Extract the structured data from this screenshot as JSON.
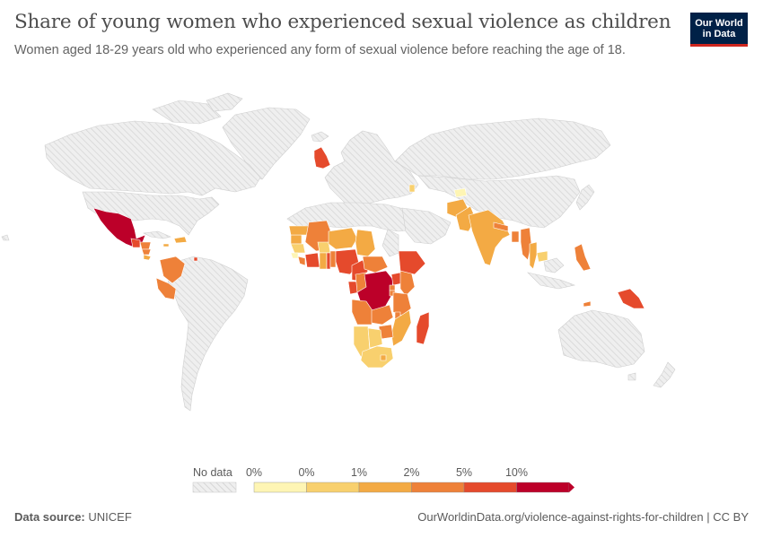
{
  "header": {
    "title": "Share of young women who experienced sexual violence as children",
    "subtitle": "Women aged 18-29 years old who experienced any form of sexual violence before reaching the age of 18."
  },
  "logo": {
    "line1": "Our World",
    "line2": "in Data"
  },
  "legend": {
    "no_data_label": "No data",
    "ticks": [
      "0%",
      "0%",
      "1%",
      "2%",
      "5%",
      "10%"
    ],
    "colors": [
      "#fef5b4",
      "#f8d06e",
      "#f3aa44",
      "#ee8139",
      "#e54a2c",
      "#bc0029"
    ]
  },
  "colors": {
    "no_data_fill": "#ececec",
    "no_data_hatch": "#d8d8d8",
    "border": "#c8c8c8"
  },
  "map_data": {
    "Mexico": "10%+",
    "Guatemala": "5-10%",
    "Honduras": "2-5%",
    "El Salvador": "2-5%",
    "Nicaragua": "2-5%",
    "Costa Rica": "1-2%",
    "Jamaica": "1-2%",
    "Haiti": "1-2%",
    "Dominican Republic": "1-2%",
    "Colombia": "2-5%",
    "Peru": "2-5%",
    "United Kingdom": "5-10%",
    "Moldova": "0-1%",
    "Senegal": "1-2%",
    "Gambia": "1-2%",
    "Guinea-Bissau": "1-2%",
    "Guinea": "0-1%",
    "Sierra Leone": "0%",
    "Liberia": "2-5%",
    "Cote d'Ivoire": "5-10%",
    "Mali": "2-5%",
    "Burkina Faso": "0-1%",
    "Ghana": "1-2%",
    "Togo": "5-10%",
    "Benin": "2-5%",
    "Niger": "1-2%",
    "Nigeria": "2-5%",
    "Chad": "1-2%",
    "Cameroon": "5-10%",
    "Central African Republic": "2-5%",
    "Gabon": "5-10%",
    "Congo": "2-5%",
    "Democratic Republic of Congo": "10%+",
    "Uganda": "5-10%",
    "Kenya": "2-5%",
    "Rwanda": "2-5%",
    "Burundi": "2-5%",
    "Tanzania": "2-5%",
    "Ethiopia": "5-10%",
    "Angola": "2-5%",
    "Zambia": "2-5%",
    "Malawi": "2-5%",
    "Mozambique": "1-2%",
    "Zimbabwe": "2-5%",
    "Namibia": "0-1%",
    "Botswana": "0-1%",
    "South Africa": "0-1%",
    "Lesotho": "1-2%",
    "Eswatini": "1-2%",
    "Madagascar": "5-10%",
    "Afghanistan": "1-2%",
    "Pakistan": "1-2%",
    "Tajikistan": "0%",
    "Kyrgyzstan": "0%",
    "India": "1-2%",
    "Nepal": "2-5%",
    "Bangladesh": "2-5%",
    "Myanmar": "2-5%",
    "Thailand": "1-2%",
    "Cambodia": "0-1%",
    "Philippines": "2-5%",
    "Timor": "2-5%",
    "Papua New Guinea": "5-10%"
  }
}
